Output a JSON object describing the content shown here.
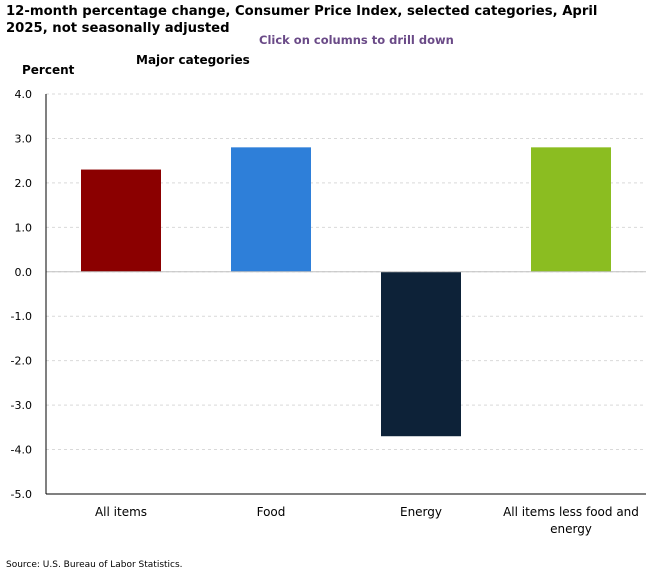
{
  "title": "12-month percentage change, Consumer Price Index, selected categories, April 2025, not seasonally adjusted",
  "drill_hint": "Click on columns to drill down",
  "source": "Source: U.S. Bureau of Labor Statistics.",
  "chart_data": {
    "type": "bar",
    "title": "12-month percentage change, Consumer Price Index, selected categories, April 2025, not seasonally adjusted",
    "subtitle": "Major categories",
    "ylabel": "Percent",
    "xlabel": "",
    "ylim": [
      -5.0,
      4.0
    ],
    "yticks": [
      "4.0",
      "3.0",
      "2.0",
      "1.0",
      "0.0",
      "-1.0",
      "-2.0",
      "-3.0",
      "-4.0",
      "-5.0"
    ],
    "categories": [
      "All items",
      "Food",
      "Energy",
      "All items less food and energy"
    ],
    "category_lines": [
      [
        "All items"
      ],
      [
        "Food"
      ],
      [
        "Energy"
      ],
      [
        "All items less food and",
        "energy"
      ]
    ],
    "values": [
      2.3,
      2.8,
      -3.7,
      2.8
    ],
    "colors": [
      "#8b0000",
      "#2e7fd9",
      "#0d2238",
      "#8bbd21"
    ],
    "grid": true
  }
}
